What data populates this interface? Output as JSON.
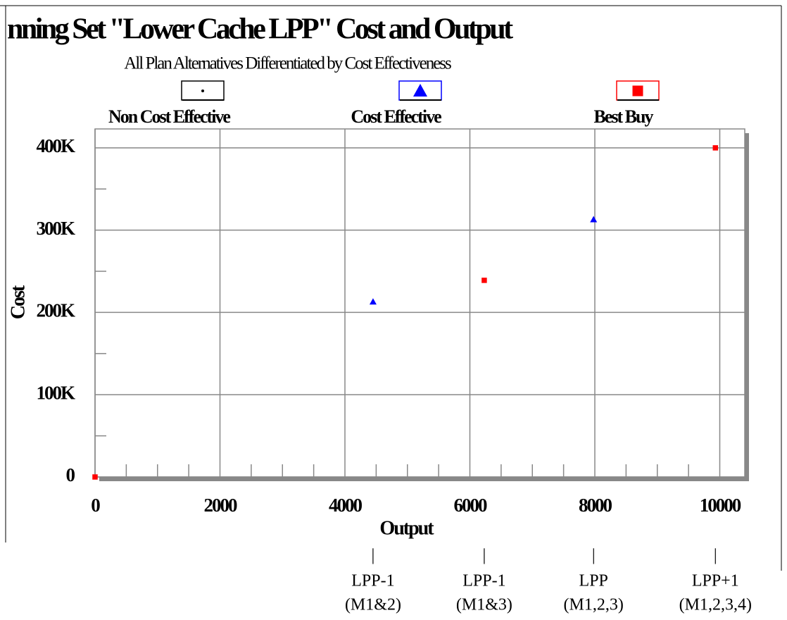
{
  "chart_data": {
    "type": "scatter",
    "title": "nning Set \"Lower Cache LPP\" Cost and Output",
    "subtitle": "All Plan Alternatives Differentiated by Cost Effectiveness",
    "x_label": "Output",
    "y_label": "Cost",
    "xlim": [
      0,
      10400
    ],
    "ylim": [
      0,
      423000
    ],
    "xticks": [
      0,
      2000,
      4000,
      6000,
      8000,
      10000
    ],
    "yticks": [
      {
        "value": 0,
        "label": "0"
      },
      {
        "value": 100000,
        "label": "100K"
      },
      {
        "value": 200000,
        "label": "200K"
      },
      {
        "value": 300000,
        "label": "300K"
      },
      {
        "value": 400000,
        "label": "400K"
      }
    ],
    "x_minor_ticks": [
      500,
      1000,
      1500,
      2500,
      3000,
      3500,
      4500,
      5000,
      5500,
      6500,
      7000,
      7500,
      8500,
      9000,
      9500
    ],
    "y_minor_ticks": [
      50000,
      150000,
      250000,
      350000
    ],
    "grid": true,
    "series": [
      {
        "name": "Non Cost Effective",
        "color": "#000000",
        "marker": "dot",
        "x": [],
        "values": []
      },
      {
        "name": "Cost Effective",
        "color": "#0000ff",
        "marker": "triangle",
        "x": [
          4450,
          7980
        ],
        "values": [
          213000,
          313000
        ]
      },
      {
        "name": "Best Buy",
        "color": "#ff0000",
        "marker": "square",
        "x": [
          0,
          6230,
          9930
        ],
        "values": [
          0,
          239000,
          400000
        ]
      }
    ],
    "annotations": [
      {
        "x": 4450,
        "marker": "|",
        "label": "LPP-1",
        "sublabel": "(M1&2)"
      },
      {
        "x": 6230,
        "marker": "|",
        "label": "LPP-1",
        "sublabel": "(M1&3)"
      },
      {
        "x": 7980,
        "marker": "|",
        "label": "LPP",
        "sublabel": "(M1,2,3)"
      },
      {
        "x": 9930,
        "marker": "|",
        "label": "LPP+1",
        "sublabel": "(M1,2,3,4)"
      }
    ]
  }
}
